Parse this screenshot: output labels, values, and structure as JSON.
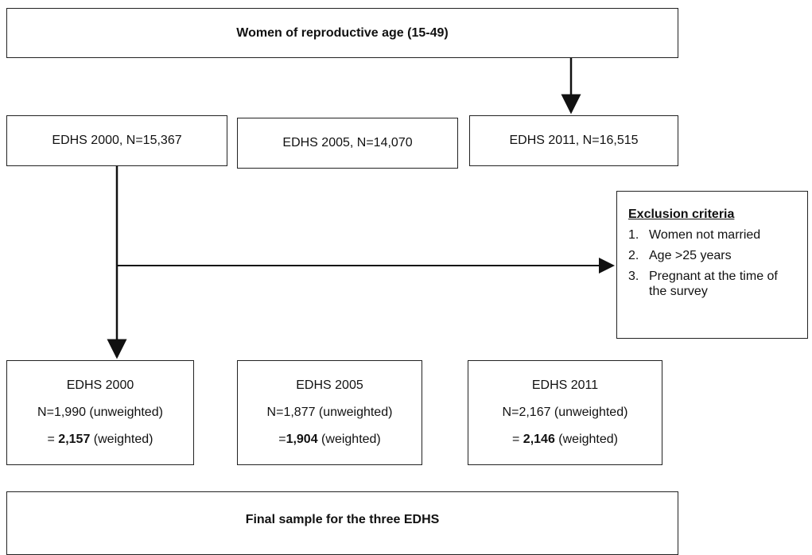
{
  "top_box": {
    "label": "Women of reproductive age (15-49)"
  },
  "surveys": [
    "EDHS 2000, N=15,367",
    "EDHS 2005, N=14,070",
    "EDHS 2011, N=16,515"
  ],
  "exclusion": {
    "title": "Exclusion criteria",
    "items": [
      {
        "number": "1.",
        "text": "Women not married"
      },
      {
        "number": "2.",
        "text": "Age >25 years"
      },
      {
        "number": "3.",
        "text": "Pregnant at the time of the survey"
      }
    ]
  },
  "samples": [
    {
      "name": "EDHS 2000",
      "unweighted": "N=1,990 (unweighted)",
      "weighted_prefix": "= ",
      "weighted_value": "2,157",
      "weighted_suffix": " (weighted)"
    },
    {
      "name": "EDHS 2005",
      "unweighted": "N=1,877 (unweighted)",
      "weighted_prefix": "=",
      "weighted_value": "1,904",
      "weighted_suffix": " (weighted)"
    },
    {
      "name": "EDHS 2011",
      "unweighted": "N=2,167 (unweighted)",
      "weighted_prefix": "= ",
      "weighted_value": "2,146",
      "weighted_suffix": " (weighted)"
    }
  ],
  "final_box": {
    "label": "Final sample for the three EDHS"
  }
}
